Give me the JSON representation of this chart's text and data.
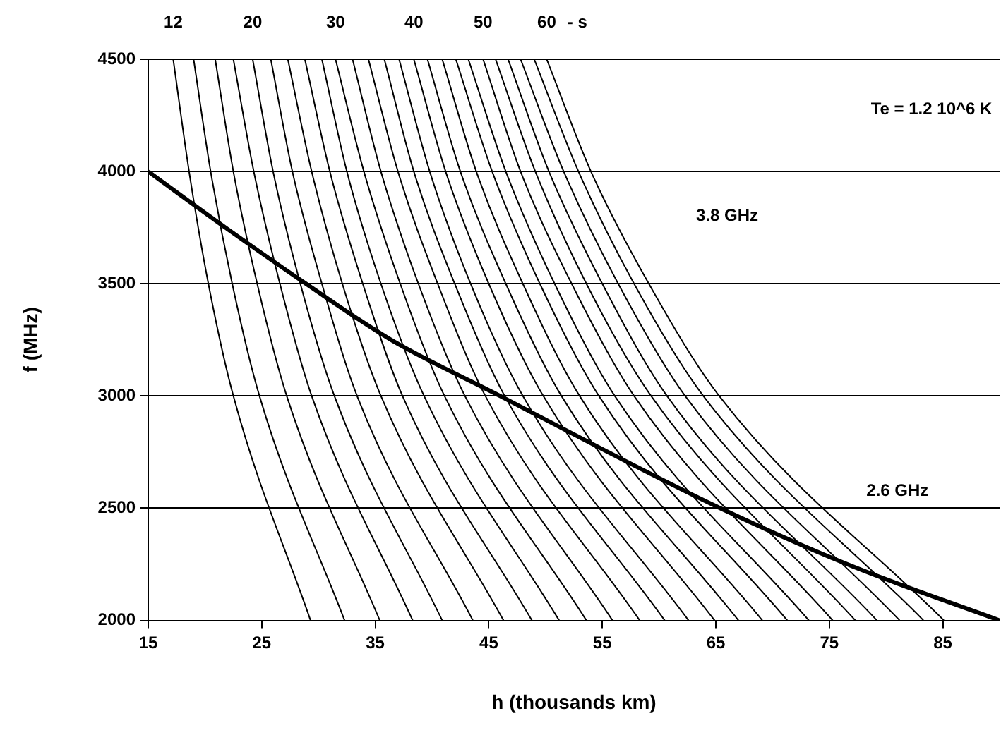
{
  "chart_data": {
    "type": "line",
    "xlabel": "h (thousands km)",
    "ylabel": "f (MHz)",
    "xlim": [
      15,
      90
    ],
    "ylim": [
      2000,
      4500
    ],
    "xticks": [
      15,
      25,
      35,
      45,
      55,
      65,
      75,
      85
    ],
    "yticks": [
      2000,
      2500,
      3000,
      3500,
      4000,
      4500
    ],
    "grid": "y",
    "legend": false,
    "marker": "none",
    "line_style": "solid",
    "annotations": [
      "Te = 1.2 10^6 K",
      "3.8 GHz",
      "2.6 GHz",
      "- s"
    ],
    "series": [
      {
        "name": "12",
        "color": "#000000",
        "x": [
          17.2,
          18.6,
          20.3,
          22.5,
          29.3
        ],
        "values": [
          4500,
          4000,
          3500,
          3000,
          2000
        ]
      },
      {
        "color": "#000000",
        "x": [
          19.0,
          20.5,
          22.4,
          24.8,
          32.3
        ],
        "values": [
          4500,
          4000,
          3500,
          3000,
          2000
        ]
      },
      {
        "color": "#000000",
        "x": [
          20.9,
          22.5,
          24.6,
          27.2,
          35.4
        ],
        "values": [
          4500,
          4000,
          3500,
          3000,
          2000
        ]
      },
      {
        "color": "#000000",
        "x": [
          22.5,
          24.3,
          26.6,
          29.4,
          38.3
        ],
        "values": [
          4500,
          4000,
          3500,
          3000,
          2000
        ]
      },
      {
        "name": "20",
        "color": "#000000",
        "x": [
          24.2,
          26.0,
          28.4,
          31.4,
          40.9
        ],
        "values": [
          4500,
          4000,
          3500,
          3000,
          2000
        ]
      },
      {
        "color": "#000000",
        "x": [
          25.8,
          27.7,
          30.3,
          33.4,
          43.6
        ],
        "values": [
          4500,
          4000,
          3500,
          3000,
          2000
        ]
      },
      {
        "color": "#000000",
        "x": [
          27.3,
          29.4,
          32.1,
          35.5,
          46.3
        ],
        "values": [
          4500,
          4000,
          3500,
          3000,
          2000
        ]
      },
      {
        "color": "#000000",
        "x": [
          28.8,
          31.0,
          33.9,
          37.4,
          48.8
        ],
        "values": [
          4500,
          4000,
          3500,
          3000,
          2000
        ]
      },
      {
        "color": "#000000",
        "x": [
          30.3,
          32.5,
          35.5,
          39.3,
          51.2
        ],
        "values": [
          4500,
          4000,
          3500,
          3000,
          2000
        ]
      },
      {
        "name": "30",
        "color": "#000000",
        "x": [
          31.5,
          34.0,
          37.2,
          41.1,
          53.6
        ],
        "values": [
          4500,
          4000,
          3500,
          3000,
          2000
        ]
      },
      {
        "color": "#000000",
        "x": [
          33.0,
          35.5,
          38.8,
          42.9,
          55.9
        ],
        "values": [
          4500,
          4000,
          3500,
          3000,
          2000
        ]
      },
      {
        "color": "#000000",
        "x": [
          34.4,
          37.0,
          40.5,
          44.7,
          58.3
        ],
        "values": [
          4500,
          4000,
          3500,
          3000,
          2000
        ]
      },
      {
        "color": "#000000",
        "x": [
          35.8,
          38.4,
          42.0,
          46.4,
          60.5
        ],
        "values": [
          4500,
          4000,
          3500,
          3000,
          2000
        ]
      },
      {
        "color": "#000000",
        "x": [
          37.1,
          39.8,
          43.4,
          48.0,
          62.6
        ],
        "values": [
          4500,
          4000,
          3500,
          3000,
          2000
        ]
      },
      {
        "name": "40",
        "color": "#000000",
        "x": [
          38.4,
          41.2,
          45.0,
          49.8,
          64.9
        ],
        "values": [
          4500,
          4000,
          3500,
          3000,
          2000
        ]
      },
      {
        "color": "#000000",
        "x": [
          39.6,
          42.5,
          46.5,
          51.4,
          67.0
        ],
        "values": [
          4500,
          4000,
          3500,
          3000,
          2000
        ]
      },
      {
        "color": "#000000",
        "x": [
          40.9,
          43.9,
          48.0,
          53.0,
          69.1
        ],
        "values": [
          4500,
          4000,
          3500,
          3000,
          2000
        ]
      },
      {
        "color": "#000000",
        "x": [
          42.1,
          45.3,
          49.5,
          54.7,
          71.3
        ],
        "values": [
          4500,
          4000,
          3500,
          3000,
          2000
        ]
      },
      {
        "color": "#000000",
        "x": [
          43.2,
          46.5,
          50.8,
          56.1,
          73.2
        ],
        "values": [
          4500,
          4000,
          3500,
          3000,
          2000
        ]
      },
      {
        "name": "50",
        "color": "#000000",
        "x": [
          44.5,
          47.8,
          52.3,
          57.8,
          75.3
        ],
        "values": [
          4500,
          4000,
          3500,
          3000,
          2000
        ]
      },
      {
        "color": "#000000",
        "x": [
          45.6,
          49.1,
          53.6,
          59.3,
          77.3
        ],
        "values": [
          4500,
          4000,
          3500,
          3000,
          2000
        ]
      },
      {
        "color": "#000000",
        "x": [
          46.7,
          50.3,
          55.0,
          60.7,
          79.2
        ],
        "values": [
          4500,
          4000,
          3500,
          3000,
          2000
        ]
      },
      {
        "color": "#000000",
        "x": [
          47.8,
          51.6,
          56.4,
          62.3,
          81.2
        ],
        "values": [
          4500,
          4000,
          3500,
          3000,
          2000
        ]
      },
      {
        "color": "#000000",
        "x": [
          49.0,
          52.9,
          57.8,
          63.9,
          83.3
        ],
        "values": [
          4500,
          4000,
          3500,
          3000,
          2000
        ]
      },
      {
        "name": "60",
        "color": "#000000",
        "x": [
          50.1,
          54.0,
          59.1,
          65.3,
          85.1
        ],
        "values": [
          4500,
          4000,
          3500,
          3000,
          2000
        ]
      },
      {
        "color": "#000000",
        "x": [
          15,
          21.8,
          28.9,
          36.4,
          46.0,
          55.5,
          65.4,
          76.6,
          90
        ],
        "values": [
          4000,
          3750,
          3500,
          3250,
          3000,
          2750,
          2500,
          2250,
          2000
        ]
      }
    ]
  }
}
